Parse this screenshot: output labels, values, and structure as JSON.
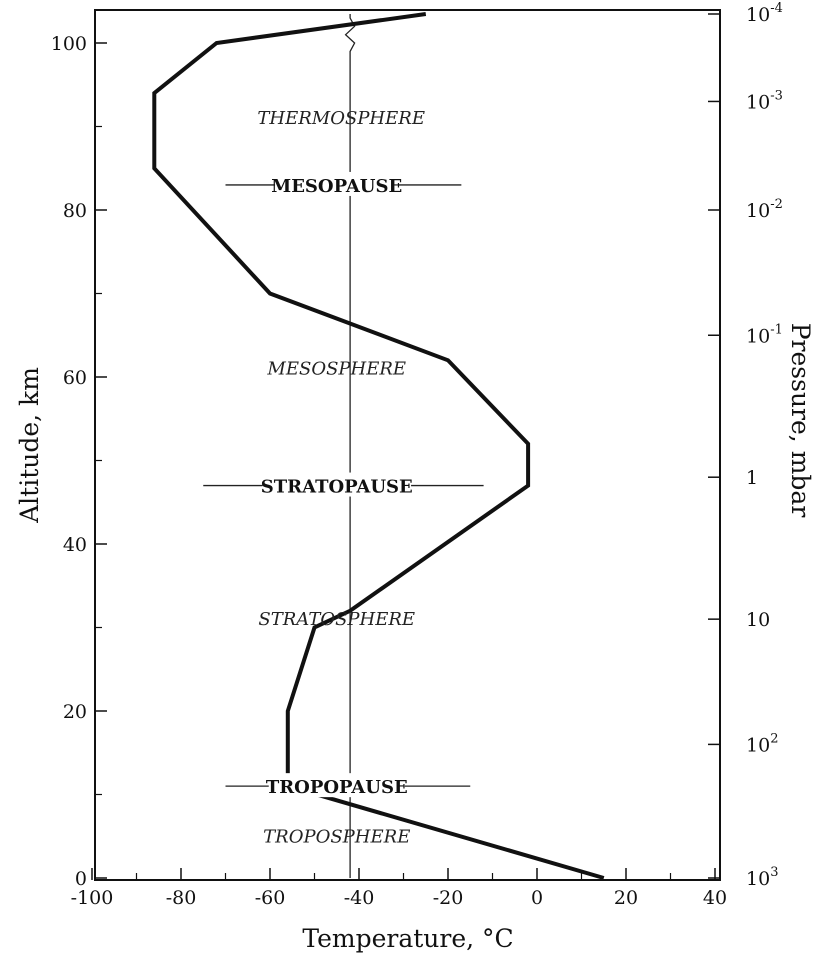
{
  "chart_data": {
    "type": "line",
    "title": "",
    "xlabel": "Temperature, °C",
    "ylabel": "Altitude,  km",
    "y2label": "Pressure,  mbar",
    "xlim": [
      -100,
      40
    ],
    "ylim": [
      0,
      100
    ],
    "x_ticks": [
      -100,
      -80,
      -60,
      -40,
      -20,
      0,
      20,
      40
    ],
    "y_ticks": [
      0,
      20,
      40,
      60,
      80,
      100
    ],
    "pressure_ticks": [
      {
        "base": "10",
        "exp": "3",
        "altitude": 0
      },
      {
        "base": "10",
        "exp": "2",
        "altitude": 16
      },
      {
        "base": "10",
        "exp": "",
        "altitude": 31
      },
      {
        "base": "1",
        "exp": "",
        "altitude": 48
      },
      {
        "base": "10",
        "exp": "-1",
        "altitude": 65
      },
      {
        "base": "10",
        "exp": "-2",
        "altitude": 80
      },
      {
        "base": "10",
        "exp": "-3",
        "altitude": 93
      },
      {
        "base": "10",
        "exp": "-4",
        "altitude": 107
      }
    ],
    "series": [
      {
        "values": [
          {
            "x": 15,
            "y": 0
          },
          {
            "x": -56,
            "y": 11
          },
          {
            "x": -56,
            "y": 20
          },
          {
            "x": -50,
            "y": 30
          },
          {
            "x": -42,
            "y": 32
          },
          {
            "x": -2,
            "y": 47
          },
          {
            "x": -2,
            "y": 52
          },
          {
            "x": -20,
            "y": 62
          },
          {
            "x": -60,
            "y": 70
          },
          {
            "x": -86,
            "y": 85
          },
          {
            "x": -86,
            "y": 94
          },
          {
            "x": -72,
            "y": 100
          },
          {
            "x": -25,
            "y": 112
          }
        ]
      }
    ],
    "reference_line": {
      "x": -42,
      "points": [
        {
          "x": -42,
          "y": 0
        },
        {
          "x": -42,
          "y": 99
        },
        {
          "x": -41,
          "y": 100
        },
        {
          "x": -43,
          "y": 101
        },
        {
          "x": -41,
          "y": 102
        },
        {
          "x": -42,
          "y": 103
        },
        {
          "x": -42,
          "y": 110
        }
      ]
    },
    "annotations": {
      "layers": [
        {
          "text": "TROPOSPHERE",
          "x": -45,
          "y": 5
        },
        {
          "text": "STRATOSPHERE",
          "x": -45,
          "y": 31
        },
        {
          "text": "MESOSPHERE",
          "x": -45,
          "y": 61
        },
        {
          "text": "THERMOSPHERE",
          "x": -44,
          "y": 91
        }
      ],
      "pauses": [
        {
          "text": "TROPOPAUSE",
          "y": 11,
          "x1": -70,
          "x2": -15
        },
        {
          "text": "STRATOPAUSE",
          "y": 47,
          "x1": -75,
          "x2": -12
        },
        {
          "text": "MESOPAUSE",
          "y": 83,
          "x1": -70,
          "x2": -17
        }
      ]
    }
  }
}
